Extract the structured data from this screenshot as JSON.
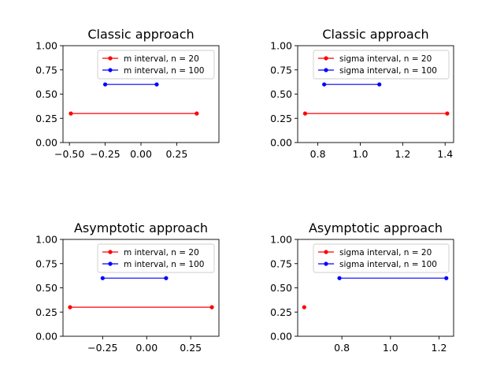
{
  "chart_data": [
    {
      "type": "line",
      "title": "Classic approach",
      "xlabel": "",
      "ylabel": "",
      "xlim": [
        -0.545,
        0.545
      ],
      "ylim": [
        0,
        1
      ],
      "xticks": [
        "-0.50",
        "-0.25",
        "0.00",
        "0.25"
      ],
      "yticks": [
        "0.00",
        "0.25",
        "0.50",
        "0.75",
        "1.00"
      ],
      "legend": "top-right",
      "series": [
        {
          "name": "m interval, n = 20",
          "color": "#ff0000",
          "x": [
            -0.49,
            0.39
          ],
          "y": [
            0.3,
            0.3
          ]
        },
        {
          "name": "m interval, n = 100",
          "color": "#0000ff",
          "x": [
            -0.25,
            0.11
          ],
          "y": [
            0.6,
            0.6
          ]
        }
      ]
    },
    {
      "type": "line",
      "title": "Classic approach",
      "xlabel": "",
      "ylabel": "",
      "xlim": [
        0.705,
        1.44
      ],
      "ylim": [
        0,
        1
      ],
      "xticks": [
        "0.8",
        "1.0",
        "1.2",
        "1.4"
      ],
      "yticks": [
        "0.00",
        "0.25",
        "0.50",
        "0.75",
        "1.00"
      ],
      "legend": "top-right",
      "series": [
        {
          "name": "sigma interval, n = 20",
          "color": "#ff0000",
          "x": [
            0.74,
            1.41
          ],
          "y": [
            0.3,
            0.3
          ]
        },
        {
          "name": "sigma interval, n = 100",
          "color": "#0000ff",
          "x": [
            0.83,
            1.09
          ],
          "y": [
            0.6,
            0.6
          ]
        }
      ]
    },
    {
      "type": "line",
      "title": "Asymptotic approach",
      "xlabel": "",
      "ylabel": "",
      "xlim": [
        -0.475,
        0.41
      ],
      "ylim": [
        0,
        1
      ],
      "xticks": [
        "-0.25",
        "0.00",
        "0.25"
      ],
      "yticks": [
        "0.00",
        "0.25",
        "0.50",
        "0.75",
        "1.00"
      ],
      "legend": "top-right",
      "series": [
        {
          "name": "m interval, n = 20",
          "color": "#ff0000",
          "x": [
            -0.435,
            0.37
          ],
          "y": [
            0.3,
            0.3
          ]
        },
        {
          "name": "m interval, n = 100",
          "color": "#0000ff",
          "x": [
            -0.25,
            0.11
          ],
          "y": [
            0.6,
            0.6
          ]
        }
      ]
    },
    {
      "type": "line",
      "title": "Asymptotic approach",
      "xlabel": "",
      "ylabel": "",
      "xlim": [
        0.618,
        1.26
      ],
      "ylim": [
        0,
        1
      ],
      "xticks": [
        "0.8",
        "1.0",
        "1.2"
      ],
      "yticks": [
        "0.00",
        "0.25",
        "0.50",
        "0.75",
        "1.00"
      ],
      "legend": "top-right",
      "series": [
        {
          "name": "sigma interval, n = 20",
          "color": "#ff0000",
          "x": [
            0.645
          ],
          "y": [
            0.3
          ]
        },
        {
          "name": "sigma interval, n = 100",
          "color": "#0000ff",
          "x": [
            0.79,
            1.23
          ],
          "y": [
            0.6,
            0.6
          ]
        }
      ]
    }
  ]
}
